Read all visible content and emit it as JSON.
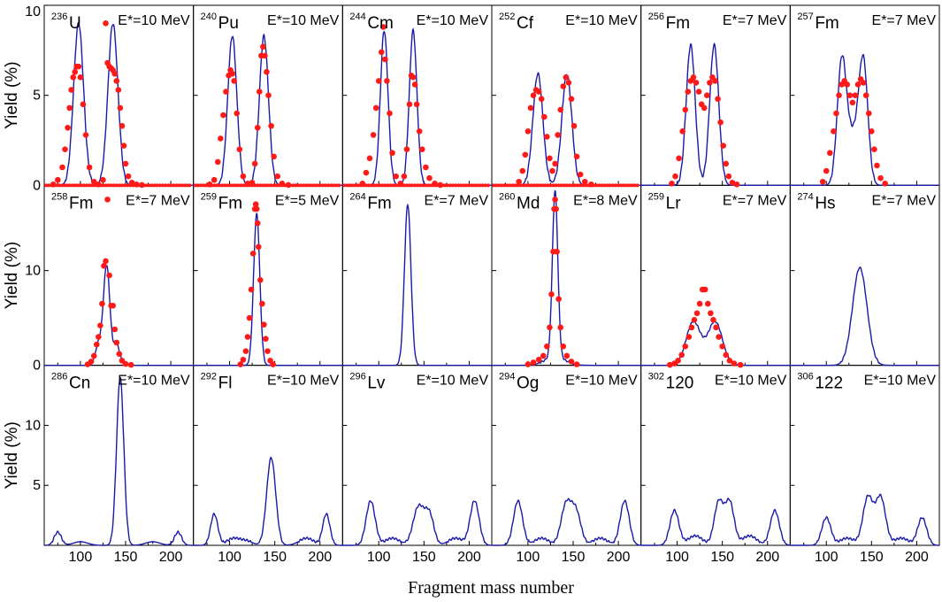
{
  "chart_data": {
    "type": "line",
    "xlabel": "Fragment mass number",
    "ylabel": "Yield (%)",
    "xlim": [
      60,
      225
    ],
    "xticks": [
      100,
      150,
      200
    ],
    "rows": [
      {
        "ylim": [
          0,
          10
        ],
        "yticks": [
          0,
          5,
          10
        ]
      },
      {
        "ylim": [
          0,
          19
        ],
        "yticks": [
          0,
          10
        ]
      },
      {
        "ylim": [
          0,
          15
        ],
        "yticks": [
          5,
          10
        ]
      }
    ],
    "colors": {
      "theory": "#1a1aa8",
      "experiment": "#ff1a1a"
    },
    "series_names": {
      "theory": "calculation",
      "experiment": "experiment"
    },
    "panels": [
      {
        "row": 0,
        "col": 0,
        "mass": "236",
        "symbol": "U",
        "energy": "E*=10 MeV",
        "theory": {
          "peaks": [
            [
              98,
              9.0,
              5.5
            ],
            [
              136,
              9.0,
              5.5
            ]
          ]
        },
        "experiment": {
          "x": [
            70,
            75,
            80,
            83,
            86,
            88,
            90,
            92,
            94,
            96,
            98,
            100,
            103,
            106,
            110,
            115,
            120,
            125,
            128,
            130,
            132,
            134,
            136,
            138,
            140,
            142,
            144,
            146,
            148,
            150,
            153,
            157,
            162,
            168
          ],
          "y": [
            0.05,
            0.3,
            1.0,
            2.0,
            3.2,
            4.3,
            5.3,
            6.0,
            6.3,
            6.6,
            6.6,
            6.0,
            4.5,
            2.8,
            1.0,
            0.2,
            0.05,
            0.3,
            9.0,
            6.8,
            6.6,
            6.5,
            6.4,
            6.2,
            5.8,
            5.3,
            4.3,
            3.3,
            2.2,
            1.2,
            0.5,
            0.15,
            0.05,
            0.02
          ]
        }
      },
      {
        "row": 0,
        "col": 1,
        "mass": "240",
        "symbol": "Pu",
        "energy": "E*=10 MeV",
        "theory": {
          "peaks": [
            [
              103,
              8.3,
              5.0
            ],
            [
              138,
              8.3,
              5.0
            ]
          ]
        },
        "experiment": {
          "x": [
            78,
            83,
            87,
            90,
            93,
            96,
            99,
            101,
            103,
            105,
            108,
            111,
            115,
            120,
            125,
            128,
            131,
            133,
            135,
            137,
            139,
            141,
            143,
            146,
            149,
            153,
            158,
            165
          ],
          "y": [
            0.05,
            0.3,
            1.3,
            2.6,
            3.9,
            5.2,
            6.1,
            6.4,
            6.2,
            5.8,
            4.0,
            2.0,
            0.5,
            0.1,
            0.15,
            1.2,
            3.2,
            5.2,
            7.2,
            7.7,
            7.2,
            6.3,
            5.0,
            3.3,
            1.6,
            0.5,
            0.1,
            0.02
          ]
        }
      },
      {
        "row": 0,
        "col": 2,
        "mass": "244",
        "symbol": "Cm",
        "energy": "E*=10 MeV",
        "theory": {
          "peaks": [
            [
              106,
              8.6,
              4.2
            ],
            [
              138,
              8.6,
              4.2
            ]
          ]
        },
        "experiment": {
          "x": [
            82,
            86,
            90,
            94,
            97,
            100,
            103,
            105,
            107,
            109,
            112,
            115,
            119,
            124,
            128,
            131,
            134,
            136,
            138,
            140,
            142,
            145,
            148,
            152,
            156,
            162,
            168
          ],
          "y": [
            0.1,
            0.7,
            1.5,
            2.8,
            4.3,
            5.8,
            7.4,
            8.8,
            7.0,
            5.8,
            4.0,
            1.8,
            0.5,
            0.1,
            0.5,
            2.0,
            4.5,
            6.1,
            6.0,
            5.6,
            4.5,
            3.0,
            2.0,
            1.0,
            0.4,
            0.1,
            0.02
          ]
        }
      },
      {
        "row": 0,
        "col": 3,
        "mass": "252",
        "symbol": "Cf",
        "energy": "E*=10 MeV",
        "theory": {
          "peaks": [
            [
              111,
              6.2,
              5.5
            ],
            [
              143,
              6.2,
              5.5
            ]
          ]
        },
        "experiment": {
          "x": [
            90,
            94,
            97,
            100,
            103,
            106,
            109,
            112,
            115,
            118,
            121,
            124,
            127,
            130,
            133,
            136,
            139,
            142,
            145,
            148,
            151,
            154,
            158,
            163,
            170
          ],
          "y": [
            0.2,
            0.8,
            1.7,
            3.0,
            4.3,
            5.0,
            5.3,
            5.2,
            4.8,
            3.8,
            2.7,
            1.5,
            0.8,
            1.2,
            2.8,
            4.2,
            5.5,
            6.0,
            5.7,
            4.8,
            3.3,
            1.6,
            0.6,
            0.2,
            0.05
          ]
        }
      },
      {
        "row": 0,
        "col": 4,
        "mass": "256",
        "symbol": "Fm",
        "energy": "E*=7 MeV",
        "theory": {
          "peaks": [
            [
              115,
              7.8,
              5.0
            ],
            [
              141,
              7.8,
              5.0
            ]
          ]
        },
        "experiment": {
          "x": [
            94,
            98,
            102,
            106,
            109,
            112,
            115,
            118,
            121,
            124,
            127,
            130,
            133,
            136,
            139,
            142,
            145,
            148,
            151,
            154,
            157,
            161,
            166
          ],
          "y": [
            0.1,
            0.5,
            1.5,
            3.0,
            4.2,
            5.2,
            5.8,
            6.0,
            5.7,
            5.2,
            4.5,
            4.3,
            5.0,
            5.7,
            6.0,
            5.8,
            4.8,
            3.5,
            2.2,
            1.2,
            0.5,
            0.15,
            0.05
          ]
        }
      },
      {
        "row": 0,
        "col": 5,
        "mass": "257",
        "symbol": "Fm",
        "energy": "E*=7 MeV",
        "theory": {
          "peaks": [
            [
              117,
              6.6,
              5.0
            ],
            [
              141,
              6.6,
              5.0
            ],
            [
              129,
              2.6,
              7.0
            ]
          ]
        },
        "experiment": {
          "x": [
            96,
            100,
            104,
            108,
            111,
            114,
            117,
            120,
            123,
            126,
            129,
            132,
            135,
            138,
            141,
            144,
            147,
            150,
            153,
            156,
            160,
            165
          ],
          "y": [
            0.2,
            0.8,
            1.8,
            3.0,
            4.0,
            5.0,
            5.6,
            5.8,
            5.6,
            5.0,
            4.6,
            5.0,
            5.6,
            5.9,
            5.7,
            5.0,
            4.0,
            3.0,
            2.0,
            1.1,
            0.4,
            0.1
          ]
        }
      },
      {
        "row": 1,
        "col": 0,
        "mass": "258",
        "symbol": "Fm",
        "energy": "E*=7 MeV",
        "theory": {
          "peaks": [
            [
              129,
              10.5,
              3.6
            ],
            [
              120,
              2.2,
              3.5
            ],
            [
              140,
              2.2,
              3.5
            ]
          ]
        },
        "experiment": {
          "x": [
            108,
            112,
            115,
            118,
            120,
            122,
            124,
            126,
            128,
            130,
            132,
            134,
            136,
            138,
            140,
            143,
            146,
            150,
            156
          ],
          "y": [
            0.1,
            0.4,
            1.0,
            2.2,
            3.0,
            4.2,
            6.5,
            10.5,
            11.0,
            17.5,
            9.5,
            6.3,
            6.3,
            3.8,
            2.4,
            1.2,
            0.5,
            0.15,
            0.05
          ]
        }
      },
      {
        "row": 1,
        "col": 1,
        "mass": "259",
        "symbol": "Fm",
        "energy": "E*=5 MeV",
        "theory": {
          "peaks": [
            [
              130,
              16.0,
              3.4
            ]
          ]
        },
        "experiment": {
          "x": [
            112,
            115,
            118,
            120,
            122,
            124,
            126,
            128,
            129,
            130,
            131,
            132,
            134,
            136,
            138,
            140,
            142,
            145,
            148
          ],
          "y": [
            0.1,
            0.6,
            1.5,
            3.0,
            5.0,
            8.0,
            11.8,
            16.5,
            17.0,
            16.5,
            15.0,
            12.5,
            9.0,
            6.5,
            4.3,
            2.8,
            1.5,
            0.5,
            0.1
          ]
        }
      },
      {
        "row": 1,
        "col": 2,
        "mass": "264",
        "symbol": "Fm",
        "energy": "E*=7 MeV",
        "theory": {
          "peaks": [
            [
              132,
              17.0,
              3.6
            ]
          ]
        },
        "experiment": null
      },
      {
        "row": 1,
        "col": 3,
        "mass": "260",
        "symbol": "Md",
        "energy": "E*=8 MeV",
        "theory": {
          "peaks": [
            [
              130,
              17.5,
              3.0
            ],
            [
              130,
              0.9,
              11.0
            ]
          ]
        },
        "experiment": {
          "x": [
            100,
            106,
            112,
            117,
            121,
            124,
            126,
            128,
            129,
            130,
            131,
            132,
            134,
            136,
            139,
            143,
            148,
            154
          ],
          "y": [
            0.1,
            0.3,
            0.6,
            1.0,
            2.0,
            4.0,
            7.5,
            12.0,
            16.5,
            17.5,
            16.5,
            12.0,
            7.0,
            4.0,
            2.0,
            1.0,
            0.4,
            0.1
          ]
        }
      },
      {
        "row": 1,
        "col": 4,
        "mass": "259",
        "symbol": "Lr",
        "energy": "E*=7 MeV",
        "theory": {
          "peaks": [
            [
              118,
              4.6,
              8.0
            ],
            [
              142,
              4.6,
              8.0
            ]
          ]
        },
        "experiment": {
          "x": [
            92,
            97,
            101,
            105,
            109,
            113,
            116,
            119,
            122,
            125,
            128,
            131,
            134,
            137,
            140,
            143,
            146,
            150,
            154,
            158,
            163,
            170
          ],
          "y": [
            0.05,
            0.2,
            0.5,
            1.1,
            2.0,
            3.0,
            4.0,
            4.8,
            5.5,
            6.5,
            8.0,
            8.0,
            6.5,
            5.5,
            4.8,
            4.0,
            3.0,
            2.0,
            1.1,
            0.5,
            0.2,
            0.05
          ]
        }
      },
      {
        "row": 1,
        "col": 5,
        "mass": "274",
        "symbol": "Hs",
        "energy": "E*=7 MeV",
        "theory": {
          "peaks": [
            [
              137,
              10.3,
              8.0
            ]
          ]
        },
        "experiment": null
      },
      {
        "row": 2,
        "col": 0,
        "mass": "286",
        "symbol": "Cn",
        "energy": "E*=10 MeV",
        "theory": {
          "peaks": [
            [
              144,
              14.0,
              4.0
            ],
            [
              75,
              1.1,
              4.0
            ],
            [
              208,
              1.1,
              4.0
            ],
            [
              100,
              0.3,
              8.0
            ],
            [
              180,
              0.3,
              8.0
            ]
          ]
        },
        "experiment": null
      },
      {
        "row": 2,
        "col": 1,
        "mass": "292",
        "symbol": "Fl",
        "energy": "E*=10 MeV",
        "theory": {
          "peaks": [
            [
              146,
              7.3,
              5.0
            ],
            [
              83,
              2.6,
              4.0
            ],
            [
              207,
              2.6,
              4.0
            ],
            [
              105,
              0.6,
              8.0
            ],
            [
              185,
              0.6,
              8.0
            ],
            [
              120,
              0.3,
              6.0
            ]
          ]
        },
        "experiment": null
      },
      {
        "row": 2,
        "col": 2,
        "mass": "296",
        "symbol": "Lv",
        "energy": "E*=10 MeV",
        "theory": {
          "peaks": [
            [
              91,
              3.7,
              5.0
            ],
            [
              206,
              3.7,
              5.0
            ],
            [
              144,
              3.2,
              6.0
            ],
            [
              156,
              2.5,
              5.0
            ],
            [
              115,
              0.6,
              8.0
            ],
            [
              185,
              0.6,
              8.0
            ]
          ]
        },
        "experiment": null
      },
      {
        "row": 2,
        "col": 3,
        "mass": "294",
        "symbol": "Og",
        "energy": "E*=10 MeV",
        "theory": {
          "peaks": [
            [
              89,
              3.7,
              5.0
            ],
            [
              207,
              3.7,
              5.0
            ],
            [
              142,
              3.3,
              5.5
            ],
            [
              153,
              2.8,
              5.5
            ],
            [
              115,
              0.6,
              8.0
            ],
            [
              180,
              0.6,
              8.0
            ]
          ]
        },
        "experiment": null
      },
      {
        "row": 2,
        "col": 4,
        "mass": "302",
        "symbol": "120",
        "energy": "E*=10 MeV",
        "theory": {
          "peaks": [
            [
              97,
              2.9,
              5.0
            ],
            [
              208,
              2.9,
              5.0
            ],
            [
              146,
              3.6,
              5.0
            ],
            [
              158,
              3.6,
              5.0
            ],
            [
              120,
              0.8,
              8.0
            ],
            [
              180,
              0.8,
              8.0
            ]
          ]
        },
        "experiment": null
      },
      {
        "row": 2,
        "col": 5,
        "mass": "306",
        "symbol": "122",
        "energy": "E*=10 MeV",
        "theory": {
          "peaks": [
            [
              100,
              2.3,
              5.0
            ],
            [
              206,
              2.3,
              5.0
            ],
            [
              146,
              4.0,
              5.5
            ],
            [
              160,
              4.0,
              5.5
            ],
            [
              123,
              0.6,
              8.0
            ],
            [
              183,
              0.6,
              8.0
            ]
          ]
        },
        "experiment": null
      }
    ]
  }
}
